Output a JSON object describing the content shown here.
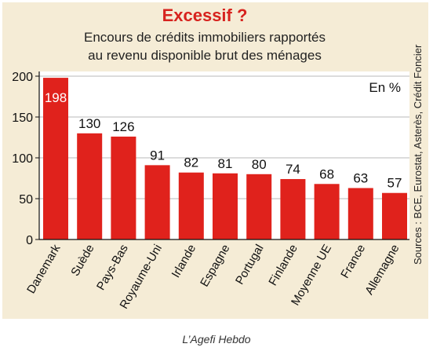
{
  "caption": "L’Agefi Hebdo",
  "chart_data": {
    "type": "bar",
    "title": "Excessif ?",
    "subtitle_lines": [
      "Encours de crédits immobiliers rapportés",
      "au revenu disponible brut des ménages"
    ],
    "unit_label": "En %",
    "source": "Sources : BCE, Eurostat, Asterès, Crédit Foncier",
    "categories": [
      "Danemark",
      "Suède",
      "Pays-Bas",
      "Royaume-Uni",
      "Irlande",
      "Espagne",
      "Portugal",
      "Finlande",
      "Moyenne UE",
      "France",
      "Allemagne"
    ],
    "values": [
      198,
      130,
      126,
      91,
      82,
      81,
      80,
      74,
      68,
      63,
      57
    ],
    "ylim": [
      0,
      200
    ],
    "yticks": [
      0,
      50,
      100,
      150,
      200
    ],
    "bar_color": "#e0221c",
    "background_color": "#f5ecd6",
    "grid": true,
    "xlabel": "",
    "ylabel": ""
  }
}
